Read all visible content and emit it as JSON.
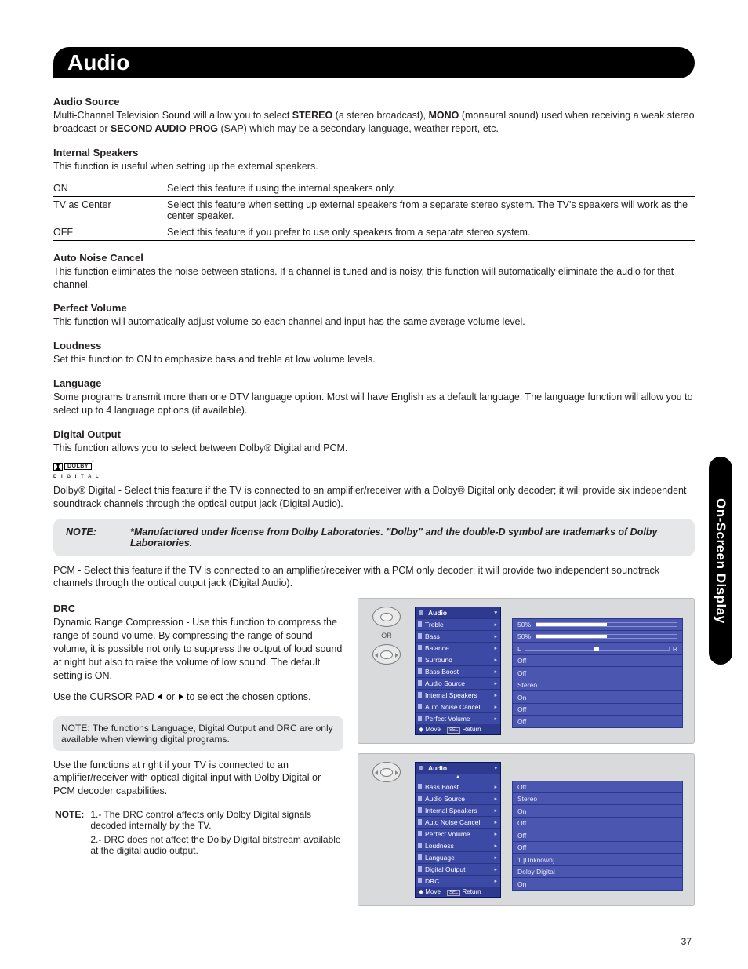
{
  "page": {
    "title": "Audio",
    "sideTab": "On-Screen Display",
    "pageNumber": "37"
  },
  "sections": {
    "audioSource": {
      "heading": "Audio Source",
      "text_pre": "Multi-Channel Television Sound will allow you to select ",
      "bold1": "STEREO",
      "text_mid1": " (a stereo broadcast), ",
      "bold2": "MONO",
      "text_mid2": " (monaural sound) used when receiving a weak stereo broadcast or ",
      "bold3": "SECOND AUDIO PROG",
      "text_post": " (SAP) which may be a secondary language, weather report, etc."
    },
    "internalSpeakers": {
      "heading": "Internal Speakers",
      "text": "This function is useful when setting up the external speakers.",
      "rows": [
        {
          "label": "ON",
          "desc": "Select this feature if using the internal speakers only."
        },
        {
          "label": "TV as Center",
          "desc": "Select this feature when setting up external speakers from a separate stereo system. The TV's speakers will work as the center speaker."
        },
        {
          "label": "OFF",
          "desc": "Select this feature if you prefer to use only speakers from a separate stereo system."
        }
      ]
    },
    "autoNoise": {
      "heading": "Auto Noise Cancel",
      "text": "This function eliminates the noise between stations. If a channel is tuned and is noisy, this function will automatically eliminate the audio for that channel."
    },
    "perfectVolume": {
      "heading": "Perfect Volume",
      "text": "This function will automatically adjust volume so each channel  and input has the same average volume level."
    },
    "loudness": {
      "heading": "Loudness",
      "text": "Set this function to ON to emphasize bass and treble at low volume levels."
    },
    "language": {
      "heading": "Language",
      "text": "Some programs transmit more than one DTV language option.  Most will have English as a default language.  The language function will allow you to select up to 4 language options (if available)."
    },
    "digitalOutput": {
      "heading": "Digital Output",
      "text": "This function allows you to select between Dolby® Digital and PCM.",
      "dolbyBadge": "DOLBY",
      "dolbySub": "D I G I T A L",
      "dolbyText": "Dolby® Digital - Select this feature if the TV is connected to an amplifier/receiver with a Dolby® Digital only decoder; it  will provide six independent soundtrack channels through the optical output jack (Digital Audio).",
      "pcmText": "PCM - Select this feature if the TV is connected to an amplifier/receiver with a PCM only decoder; it will provide two independent soundtrack channels through the optical output jack (Digital Audio)."
    },
    "note1": {
      "label": "NOTE:",
      "text": "*Manufactured under license from Dolby Laboratories.  \"Dolby\" and the double-D symbol are trademarks of Dolby Laboratories."
    },
    "drc": {
      "heading": "DRC",
      "text1": "Dynamic Range Compression - Use this function to compress the range of sound volume. By compressing the range of sound volume, it is possible not only to suppress the output of loud sound at night but also to raise the volume of low sound. The default setting is ON.",
      "text2a": "Use the CURSOR PAD ",
      "text2b": " or ",
      "text2c": " to select the chosen options.",
      "miniNote": "NOTE:  The functions Language, Digital Output and DRC are only available when viewing digital programs.",
      "text3": "Use the functions at right if your TV is connected to an amplifier/receiver with optical digital input with Dolby Digital or PCM decoder capabilities.",
      "footLabel": "NOTE:",
      "foot1": "1.- The DRC control affects only Dolby Digital signals decoded internally by the TV.",
      "foot2": "2.- DRC does not affect the Dolby Digital bitstream available at the digital audio output."
    }
  },
  "osd1": {
    "or": "OR",
    "header": "Audio",
    "footMove": "Move",
    "footSel": "SEL",
    "footReturn": "Return",
    "items": [
      {
        "label": "Treble",
        "value": "50%",
        "type": "bar",
        "fill": 50
      },
      {
        "label": "Bass",
        "value": "50%",
        "type": "bar",
        "fill": 50
      },
      {
        "label": "Balance",
        "valueL": "L",
        "valueR": "R",
        "type": "balance"
      },
      {
        "label": "Surround",
        "value": "Off",
        "type": "text"
      },
      {
        "label": "Bass Boost",
        "value": "Off",
        "type": "text"
      },
      {
        "label": "Audio Source",
        "value": "Stereo",
        "type": "text"
      },
      {
        "label": "Internal Speakers",
        "value": "On",
        "type": "text"
      },
      {
        "label": "Auto Noise Cancel",
        "value": "Off",
        "type": "text"
      },
      {
        "label": "Perfect Volume",
        "value": "Off",
        "type": "text"
      }
    ]
  },
  "osd2": {
    "header": "Audio",
    "footMove": "Move",
    "footSel": "SEL",
    "footReturn": "Return",
    "items": [
      {
        "label": "Bass Boost",
        "value": "Off"
      },
      {
        "label": "Audio Source",
        "value": "Stereo"
      },
      {
        "label": "Internal Speakers",
        "value": "On"
      },
      {
        "label": "Auto Noise Cancel",
        "value": "Off"
      },
      {
        "label": "Perfect Volume",
        "value": "Off"
      },
      {
        "label": "Loudness",
        "value": "Off"
      },
      {
        "label": "Language",
        "value": "1 [Unknown]"
      },
      {
        "label": "Digital Output",
        "value": "Dolby Digital"
      },
      {
        "label": "DRC",
        "value": "On"
      }
    ]
  }
}
